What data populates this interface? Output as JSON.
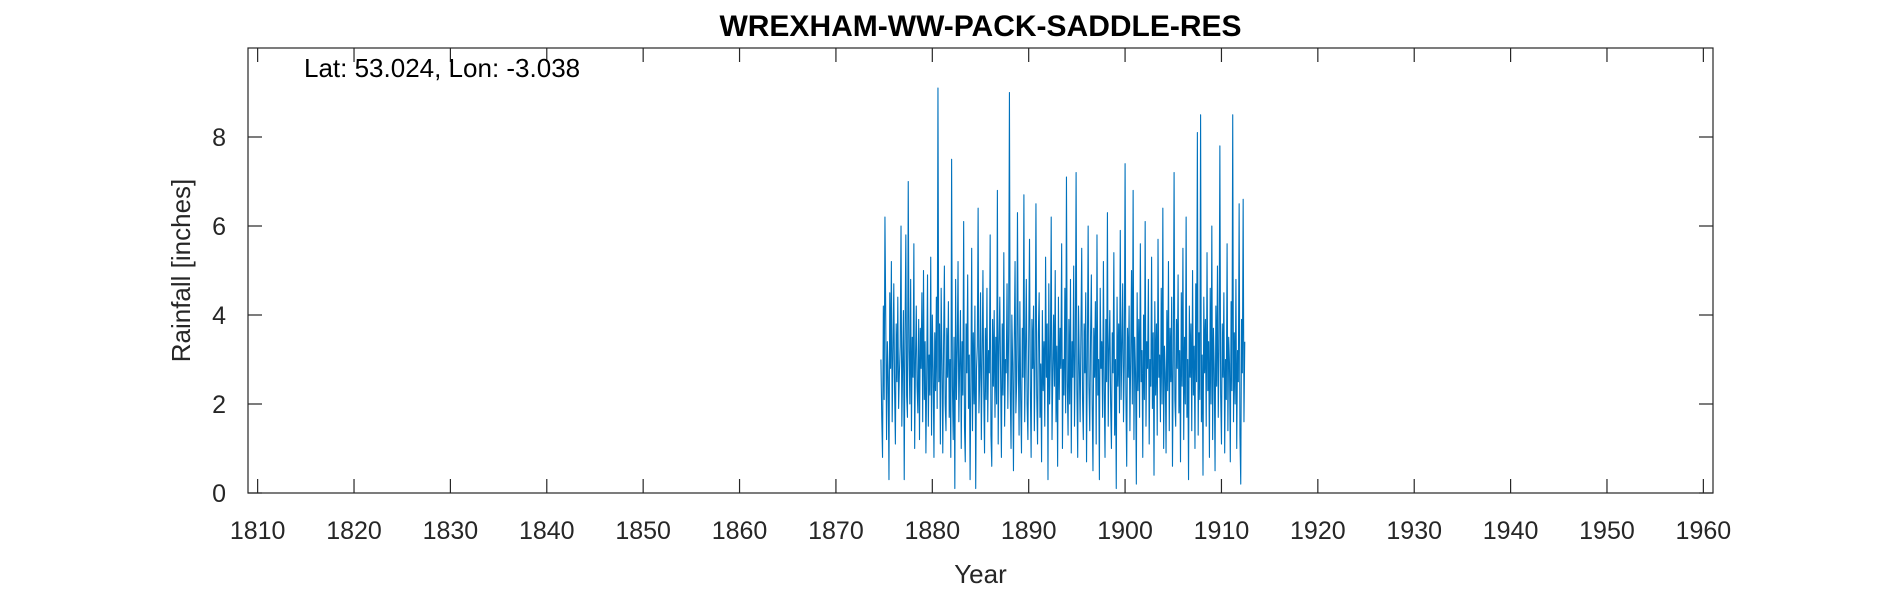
{
  "chart_data": {
    "type": "line",
    "title": "WREXHAM-WW-PACK-SADDLE-RES",
    "annotation": "Lat: 53.024, Lon: -3.038",
    "xlabel": "Year",
    "ylabel": "Rainfall [inches]",
    "xlim": [
      1809,
      1961
    ],
    "ylim": [
      0,
      10
    ],
    "xticks": [
      1810,
      1820,
      1830,
      1840,
      1850,
      1860,
      1870,
      1880,
      1890,
      1900,
      1910,
      1920,
      1930,
      1940,
      1950,
      1960
    ],
    "yticks": [
      0,
      2,
      4,
      6,
      8
    ],
    "grid": false,
    "line_color": "#0072BD",
    "series": [
      {
        "x_start": 1874.67,
        "x_step_years": 0.08333,
        "sampling": "monthly",
        "values": [
          3.0,
          1.7,
          0.8,
          4.2,
          2.1,
          6.2,
          3.9,
          1.2,
          3.4,
          2.6,
          0.3,
          4.5,
          2.8,
          5.2,
          1.6,
          3.1,
          4.7,
          2.3,
          1.1,
          3.8,
          2.5,
          4.4,
          1.9,
          2.7,
          3.3,
          6.0,
          1.5,
          2.9,
          4.1,
          0.3,
          3.6,
          5.8,
          2.2,
          1.7,
          7.0,
          3.2,
          2.0,
          4.8,
          1.4,
          3.5,
          2.6,
          5.6,
          1.0,
          3.0,
          4.2,
          2.4,
          1.8,
          3.9,
          1.2,
          3.7,
          2.8,
          4.5,
          1.6,
          5.0,
          2.1,
          3.4,
          0.9,
          2.7,
          4.9,
          1.5,
          3.1,
          2.2,
          5.3,
          1.3,
          4.0,
          2.8,
          0.8,
          3.6,
          2.3,
          4.4,
          1.9,
          9.1,
          2.5,
          3.8,
          1.1,
          4.6,
          2.9,
          0.9,
          3.3,
          5.1,
          2.0,
          1.4,
          3.7,
          2.6,
          4.3,
          1.7,
          3.0,
          0.8,
          7.5,
          2.4,
          1.2,
          3.5,
          0.1,
          4.8,
          2.1,
          3.2,
          5.2,
          1.6,
          2.9,
          4.1,
          1.0,
          3.4,
          2.2,
          6.1,
          1.5,
          0.7,
          3.8,
          2.7,
          4.9,
          1.9,
          3.1,
          0.3,
          2.5,
          5.5,
          1.4,
          3.6,
          2.0,
          4.2,
          0.1,
          2.8,
          3.3,
          6.4,
          1.8,
          2.6,
          4.5,
          1.2,
          3.0,
          5.0,
          2.3,
          0.9,
          3.7,
          2.1,
          4.6,
          1.6,
          3.2,
          2.7,
          5.8,
          1.3,
          0.6,
          3.9,
          2.4,
          4.1,
          1.7,
          3.5,
          2.0,
          6.8,
          1.1,
          3.3,
          4.4,
          2.6,
          0.8,
          3.8,
          2.2,
          5.4,
          1.5,
          3.0,
          2.7,
          4.7,
          1.9,
          3.6,
          9.0,
          2.3,
          1.0,
          4.0,
          2.9,
          0.5,
          3.4,
          5.2,
          1.8,
          2.5,
          6.3,
          3.1,
          1.3,
          4.3,
          2.1,
          0.9,
          3.7,
          2.6,
          6.7,
          1.6,
          3.2,
          4.8,
          2.0,
          1.2,
          3.5,
          5.7,
          2.4,
          0.8,
          3.9,
          2.8,
          4.2,
          1.4,
          3.0,
          6.5,
          2.2,
          1.1,
          3.6,
          4.5,
          1.7,
          2.9,
          0.7,
          4.1,
          2.3,
          3.4,
          1.5,
          5.3,
          2.6,
          3.8,
          0.3,
          4.7,
          2.0,
          3.1,
          6.2,
          1.2,
          2.7,
          4.0,
          2.4,
          5.0,
          1.6,
          3.3,
          0.6,
          4.4,
          2.1,
          3.7,
          2.8,
          5.6,
          1.0,
          3.0,
          2.2,
          4.6,
          1.8,
          7.1,
          2.5,
          1.3,
          3.9,
          2.0,
          4.8,
          0.9,
          3.4,
          2.6,
          5.1,
          1.5,
          3.2,
          7.2,
          2.3,
          0.8,
          4.2,
          2.9,
          1.6,
          3.6,
          5.5,
          2.1,
          1.2,
          3.8,
          2.7,
          4.5,
          0.7,
          3.1,
          6.0,
          2.4,
          1.4,
          3.5,
          4.9,
          2.0,
          0.5,
          3.7,
          2.6,
          4.3,
          1.1,
          5.8,
          2.2,
          3.0,
          0.3,
          4.6,
          2.8,
          3.4,
          1.7,
          5.2,
          2.3,
          0.8,
          3.9,
          2.5,
          6.3,
          1.5,
          3.2,
          4.1,
          2.0,
          1.0,
          3.6,
          2.7,
          5.4,
          1.3,
          3.0,
          0.1,
          4.4,
          2.4,
          3.8,
          1.8,
          5.9,
          2.1,
          3.3,
          4.7,
          1.6,
          2.9,
          7.4,
          2.2,
          0.6,
          3.7,
          2.6,
          4.2,
          1.4,
          3.1,
          5.0,
          2.0,
          6.8,
          1.2,
          3.5,
          2.7,
          0.2,
          4.5,
          2.3,
          3.9,
          1.7,
          5.6,
          2.5,
          3.2,
          0.8,
          4.0,
          2.1,
          6.1,
          1.5,
          3.4,
          2.8,
          4.8,
          1.1,
          3.0,
          2.4,
          5.3,
          1.9,
          3.6,
          0.4,
          4.3,
          2.2,
          3.8,
          1.3,
          5.7,
          2.6,
          3.1,
          1.6,
          4.6,
          2.0,
          6.4,
          1.0,
          3.3,
          2.7,
          0.9,
          4.1,
          2.3,
          5.2,
          1.4,
          3.7,
          2.5,
          4.4,
          0.6,
          3.0,
          7.2,
          2.1,
          1.5,
          3.9,
          2.8,
          4.9,
          1.8,
          3.2,
          0.7,
          4.5,
          2.4,
          5.5,
          1.2,
          3.5,
          2.0,
          6.2,
          1.7,
          3.0,
          0.3,
          4.2,
          2.6,
          3.8,
          1.4,
          5.0,
          2.2,
          3.3,
          1.0,
          4.7,
          2.5,
          8.1,
          1.3,
          3.6,
          2.1,
          8.5,
          1.6,
          3.1,
          0.4,
          4.4,
          2.7,
          3.9,
          1.5,
          5.4,
          2.3,
          3.4,
          0.8,
          4.6,
          2.0,
          6.0,
          1.2,
          3.7,
          2.8,
          0.5,
          4.2,
          2.4,
          5.1,
          1.7,
          3.2,
          7.8,
          2.2,
          1.1,
          3.8,
          2.6,
          4.5,
          0.9,
          3.0,
          2.1,
          5.6,
          1.4,
          3.5,
          2.9,
          0.7,
          4.3,
          2.3,
          8.5,
          1.6,
          3.6,
          2.0,
          4.8,
          1.0,
          3.2,
          2.5,
          6.5,
          1.3,
          0.2,
          3.9,
          2.7,
          6.6,
          1.6,
          3.4
        ]
      }
    ]
  }
}
